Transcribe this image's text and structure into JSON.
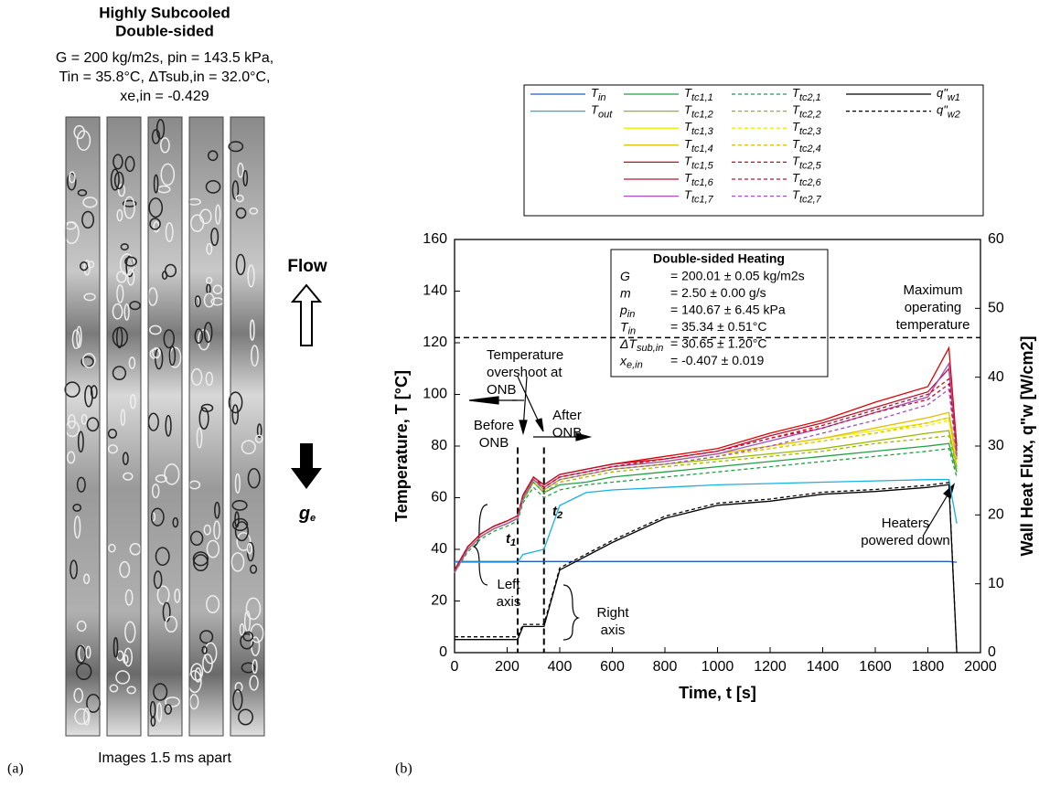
{
  "panel_a": {
    "title": [
      "Highly Subcooled",
      "Double-sided"
    ],
    "conditions": [
      "G = 200 kg/m2s, pin = 143.5 kPa,",
      "Tin = 35.8°C, ΔTsub,in = 32.0°C,",
      "xe,in = -0.429"
    ],
    "flow_label": "Flow",
    "gravity_label": "ge",
    "caption": "Images 1.5 ms apart",
    "panel_label": "(a)"
  },
  "panel_b": {
    "panel_label": "(b)"
  },
  "chart_data": {
    "type": "line",
    "xlabel": "Time, t [s]",
    "ylabel": "Temperature, T [°C]",
    "y2label": "Wall Heat Flux, q\"w [W/cm2]",
    "xlim": [
      0,
      2000
    ],
    "ylim": [
      0,
      160
    ],
    "y2lim": [
      0,
      60
    ],
    "xticks": [
      0,
      200,
      400,
      600,
      800,
      1000,
      1200,
      1400,
      1600,
      1800,
      2000
    ],
    "yticks": [
      0,
      20,
      40,
      60,
      80,
      100,
      120,
      140,
      160
    ],
    "y2ticks": [
      0,
      10,
      20,
      30,
      40,
      50,
      60
    ],
    "x": [
      0,
      50,
      100,
      150,
      200,
      240,
      260,
      300,
      340,
      400,
      500,
      600,
      800,
      1000,
      1200,
      1400,
      1600,
      1800,
      1880,
      1910
    ],
    "series": [
      {
        "name": "Tin",
        "color": "#1f5fbf",
        "dash": false,
        "values": [
          35.3,
          35.3,
          35.3,
          35.3,
          35.3,
          35.3,
          35.3,
          35.3,
          35.3,
          35.3,
          35.3,
          35.3,
          35.3,
          35.3,
          35.3,
          35.3,
          35.3,
          35.3,
          35.3,
          35
        ]
      },
      {
        "name": "Tout",
        "color": "#1ab0e0",
        "dash": false,
        "values": [
          35,
          35,
          35,
          35,
          35,
          35,
          38,
          39,
          40,
          57,
          62,
          63,
          64,
          65,
          65.5,
          66,
          66.5,
          67,
          67,
          50
        ]
      },
      {
        "name": "Ttc1,1",
        "color": "#22a045",
        "dash": false,
        "values": [
          31,
          40,
          45,
          48,
          50,
          52,
          59,
          66,
          62,
          65,
          66,
          68,
          70,
          72,
          74,
          76,
          78,
          80,
          81,
          70
        ]
      },
      {
        "name": "Ttc1,2",
        "color": "#9ab800",
        "dash": false,
        "values": [
          31,
          40,
          45,
          48,
          50,
          52,
          60,
          67,
          63,
          67,
          69,
          71,
          73,
          75,
          77,
          79,
          82,
          85,
          86,
          72
        ]
      },
      {
        "name": "Ttc1,3",
        "color": "#eeee00",
        "dash": false,
        "values": [
          31,
          40,
          45,
          48,
          50,
          52,
          60,
          67,
          64,
          68,
          70,
          72,
          74,
          77,
          80,
          83,
          86,
          89,
          91,
          74
        ]
      },
      {
        "name": "Ttc1,4",
        "color": "#e0c000",
        "dash": false,
        "values": [
          31,
          40,
          45,
          48,
          50,
          52,
          60,
          67,
          64,
          68,
          70,
          72,
          74,
          77,
          80,
          83,
          87,
          91,
          93,
          75
        ]
      },
      {
        "name": "Ttc1,5",
        "color": "#e00000",
        "dash": false,
        "values": [
          32,
          41,
          46,
          49,
          51,
          53,
          61,
          68,
          65,
          69,
          71,
          73,
          76,
          79,
          85,
          90,
          97,
          103,
          118,
          80
        ]
      },
      {
        "name": "Ttc1,6",
        "color": "#c01030",
        "dash": false,
        "values": [
          32,
          41,
          46,
          49,
          51,
          53,
          61,
          68,
          65,
          69,
          71,
          73,
          75,
          78,
          84,
          89,
          95,
          101,
          110,
          78
        ]
      },
      {
        "name": "Ttc1,7",
        "color": "#a050c0",
        "dash": false,
        "values": [
          31,
          40,
          45,
          48,
          50,
          52,
          60,
          67,
          64,
          68,
          70,
          72,
          74,
          77,
          82,
          87,
          93,
          99,
          112,
          76
        ]
      },
      {
        "name": "Ttc2,1",
        "color": "#22a045",
        "dash": true,
        "values": [
          31,
          39,
          44,
          47,
          49,
          51,
          58,
          64,
          60,
          63,
          65,
          66,
          68,
          70,
          72,
          74,
          76,
          78,
          79,
          68
        ]
      },
      {
        "name": "Ttc2,2",
        "color": "#9ab800",
        "dash": true,
        "values": [
          31,
          40,
          45,
          48,
          50,
          52,
          59,
          66,
          62,
          66,
          68,
          70,
          72,
          74,
          76,
          78,
          81,
          83,
          84,
          71
        ]
      },
      {
        "name": "Ttc2,3",
        "color": "#eeee00",
        "dash": true,
        "values": [
          31,
          40,
          45,
          48,
          50,
          52,
          60,
          67,
          63,
          67,
          69,
          71,
          73,
          76,
          79,
          82,
          85,
          88,
          90,
          73
        ]
      },
      {
        "name": "Ttc2,4",
        "color": "#e0c000",
        "dash": true,
        "values": [
          31,
          40,
          45,
          48,
          50,
          52,
          60,
          67,
          63,
          67,
          69,
          71,
          73,
          76,
          79,
          82,
          85,
          89,
          91,
          74
        ]
      },
      {
        "name": "Ttc2,5",
        "color": "#e00000",
        "dash": true,
        "values": [
          32,
          41,
          46,
          49,
          51,
          53,
          61,
          68,
          64,
          68,
          70,
          72,
          75,
          78,
          83,
          88,
          94,
          100,
          106,
          78
        ]
      },
      {
        "name": "Ttc2,6",
        "color": "#c01030",
        "dash": true,
        "values": [
          32,
          41,
          46,
          49,
          51,
          53,
          61,
          68,
          64,
          68,
          70,
          72,
          75,
          78,
          83,
          87,
          93,
          98,
          104,
          77
        ]
      },
      {
        "name": "Ttc2,7",
        "color": "#a050c0",
        "dash": true,
        "values": [
          31,
          40,
          45,
          48,
          50,
          52,
          60,
          67,
          63,
          67,
          69,
          71,
          73,
          76,
          80,
          85,
          90,
          96,
          102,
          75
        ]
      },
      {
        "name": "q\"w1",
        "color": "#000000",
        "dash": false,
        "axis": "y2",
        "values": [
          1.9,
          1.9,
          1.9,
          1.9,
          1.9,
          1.9,
          3.8,
          3.8,
          3.8,
          12,
          14,
          16,
          19.5,
          21.4,
          22,
          23,
          23.4,
          24,
          24.4,
          0
        ]
      },
      {
        "name": "q\"w2",
        "color": "#000000",
        "dash": true,
        "axis": "y2",
        "values": [
          2.3,
          2.3,
          2.3,
          2.3,
          2.3,
          2.3,
          4.1,
          4.1,
          4.1,
          12.3,
          14.3,
          16.3,
          19.8,
          21.7,
          22.3,
          23.3,
          23.7,
          24.3,
          24.7,
          0
        ]
      }
    ],
    "max_temp_line": 122,
    "event_lines": [
      {
        "label": "t1",
        "x": 240
      },
      {
        "label": "t2",
        "x": 340
      }
    ],
    "inset": {
      "title": "Double-sided Heating",
      "rows": [
        [
          "G",
          "= 200.01 ± 0.05 kg/m2s"
        ],
        [
          "m",
          "= 2.50 ± 0.00 g/s"
        ],
        [
          "pin",
          "= 140.67 ± 6.45 kPa"
        ],
        [
          "Tin",
          "= 35.34 ± 0.51°C"
        ],
        [
          "ΔTsub,in",
          "= 30.65 ± 1.20°C"
        ],
        [
          "xe,in",
          "= -0.407 ± 0.019"
        ]
      ]
    },
    "annotations": [
      [
        "Maximum",
        "operating",
        "temperature"
      ],
      [
        "Temperature",
        "overshoot at",
        "ONB"
      ],
      [
        "Before",
        "ONB"
      ],
      [
        "After",
        "ONB"
      ],
      [
        "Left",
        "axis"
      ],
      [
        "Right",
        "axis"
      ],
      [
        "Heaters",
        "powered down"
      ]
    ]
  }
}
